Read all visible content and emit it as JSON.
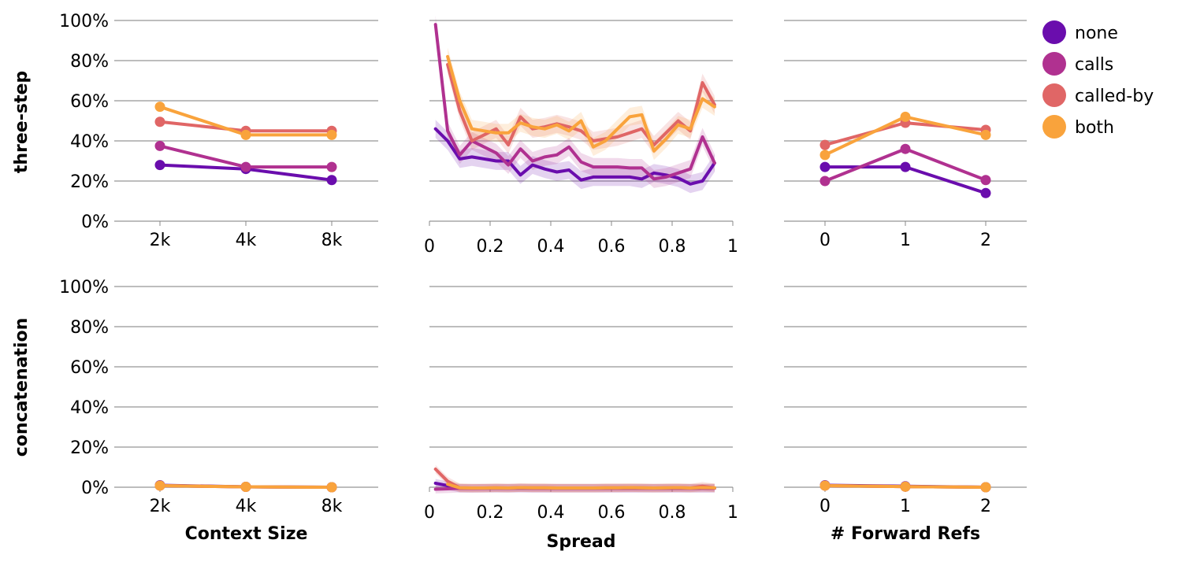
{
  "chart_data": {
    "type": "line",
    "series_names": [
      "none",
      "calls",
      "called-by",
      "both"
    ],
    "colors": {
      "none": "#6a0dad",
      "calls": "#b03190",
      "called-by": "#e06666",
      "both": "#f9a33c"
    },
    "rows": [
      "three-step",
      "concatenation"
    ],
    "y_ticks": [
      "0%",
      "20%",
      "40%",
      "60%",
      "80%",
      "100%"
    ],
    "ylim": [
      0,
      100
    ],
    "panels": [
      {
        "id": "context",
        "xlabel": "Context Size",
        "x_type": "category",
        "categories": [
          "2k",
          "4k",
          "8k"
        ],
        "data": {
          "three-step": {
            "none": [
              28,
              26,
              20.5
            ],
            "calls": [
              37.5,
              27,
              27
            ],
            "called-by": [
              49.5,
              45,
              45
            ],
            "both": [
              57,
              43,
              43
            ]
          },
          "concatenation": {
            "none": [
              1,
              0.2,
              0
            ],
            "calls": [
              0.8,
              0.2,
              0
            ],
            "called-by": [
              0.8,
              0.2,
              0
            ],
            "both": [
              0.8,
              0.2,
              0
            ]
          }
        }
      },
      {
        "id": "spread",
        "xlabel": "Spread",
        "x_type": "linear",
        "xlim": [
          0,
          1
        ],
        "x_ticks": [
          "0",
          "0.2",
          "0.4",
          "0.6",
          "0.8",
          "1"
        ],
        "x": [
          0.02,
          0.06,
          0.1,
          0.14,
          0.18,
          0.22,
          0.26,
          0.3,
          0.34,
          0.38,
          0.42,
          0.46,
          0.5,
          0.54,
          0.58,
          0.62,
          0.66,
          0.7,
          0.74,
          0.78,
          0.82,
          0.86,
          0.9,
          0.94
        ],
        "data": {
          "three-step": {
            "none": [
              46,
              40,
              31,
              32,
              31,
              30,
              30,
              23,
              28,
              26,
              24.5,
              25.5,
              20.5,
              22,
              22,
              22,
              22,
              21,
              24,
              23,
              21.5,
              18.5,
              20,
              29
            ],
            "calls": [
              98,
              45,
              33,
              40,
              37,
              34,
              28,
              36,
              30,
              32,
              33,
              37,
              29.5,
              27,
              27,
              27,
              26.5,
              26.5,
              21,
              22,
              24,
              26,
              42,
              29
            ],
            "called-by": [
              null,
              78,
              55,
              40,
              43,
              46,
              38,
              52,
              46,
              47,
              48.5,
              47,
              45,
              40,
              41,
              42,
              44,
              46,
              38,
              44,
              50,
              45,
              69,
              58
            ],
            "both": [
              null,
              82,
              60,
              46,
              45,
              44,
              44,
              49,
              47,
              46,
              48,
              45,
              50,
              37,
              40,
              46,
              52,
              53,
              35,
              41,
              48,
              46,
              61,
              57
            ]
          },
          "concatenation": {
            "none": [
              2,
              0.8,
              -0.5,
              -0.5,
              -0.5,
              -0.5,
              -0.5,
              -0.5,
              -0.5,
              -0.5,
              -0.5,
              -0.5,
              -0.5,
              -0.5,
              -0.5,
              -0.5,
              -0.5,
              -0.5,
              -0.5,
              -0.5,
              -0.5,
              -0.5,
              -0.5,
              -0.5
            ],
            "calls": [
              -1,
              -0.8,
              -0.5,
              -0.6,
              -0.5,
              -0.4,
              -0.5,
              -0.3,
              -0.5,
              -0.5,
              -0.5,
              -0.5,
              -0.5,
              -0.5,
              -0.5,
              -0.5,
              -0.5,
              -0.5,
              -0.5,
              -0.5,
              -0.5,
              -0.5,
              -0.5,
              -0.5
            ],
            "called-by": [
              9,
              3,
              -0.3,
              -0.4,
              -0.4,
              -0.3,
              -0.4,
              -0.2,
              -0.3,
              -0.3,
              -0.4,
              -0.4,
              -0.4,
              -0.4,
              -0.3,
              -0.3,
              -0.2,
              -0.3,
              -0.4,
              -0.3,
              -0.2,
              -0.4,
              0.5,
              -0.3
            ],
            "both": [
              null,
              1.5,
              -0.3,
              -0.4,
              -0.4,
              -0.3,
              -0.4,
              -0.2,
              -0.3,
              -0.3,
              -0.4,
              -0.4,
              -0.4,
              -0.4,
              -0.3,
              -0.3,
              -0.2,
              -0.3,
              -0.4,
              -0.3,
              -0.2,
              -0.4,
              -0.2,
              -0.3
            ]
          }
        }
      },
      {
        "id": "forward",
        "xlabel": "# Forward Refs",
        "x_type": "category",
        "categories": [
          "0",
          "1",
          "2"
        ],
        "data": {
          "three-step": {
            "none": [
              27,
              27,
              14
            ],
            "calls": [
              20,
              36,
              20.5
            ],
            "called-by": [
              38,
              49,
              45.5
            ],
            "both": [
              33,
              52,
              43
            ]
          },
          "concatenation": {
            "none": [
              1,
              0.5,
              0
            ],
            "calls": [
              0.8,
              0.3,
              0
            ],
            "called-by": [
              0.8,
              0.3,
              0
            ],
            "both": [
              0.8,
              0.3,
              0
            ]
          }
        }
      }
    ]
  }
}
